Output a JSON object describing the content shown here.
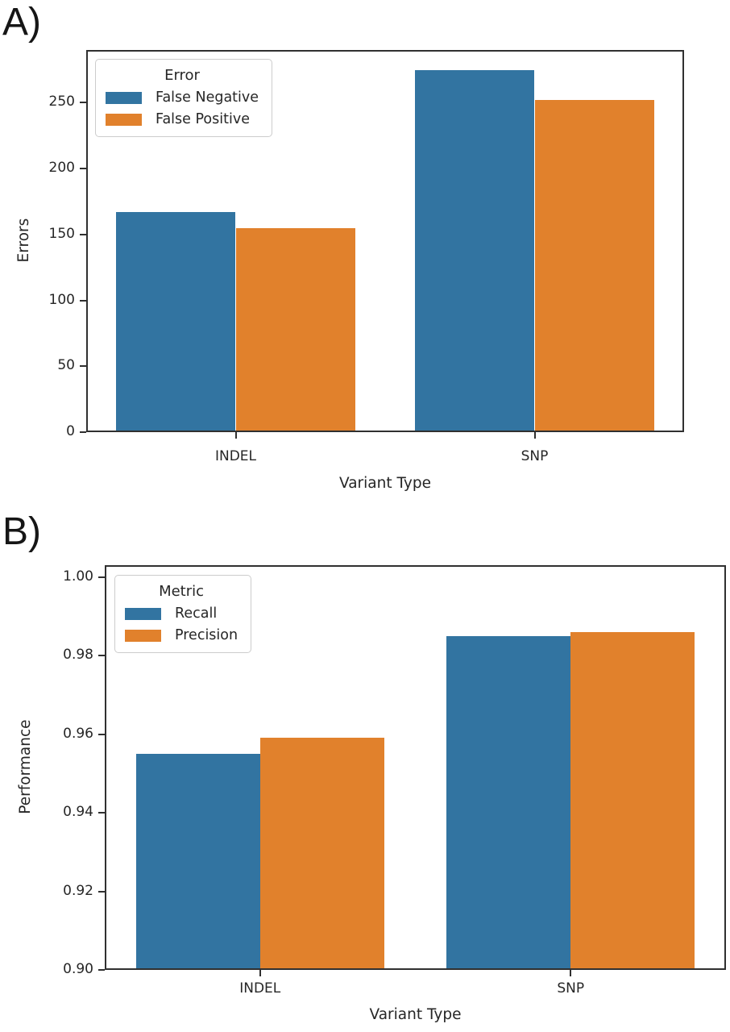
{
  "figure": {
    "background": "#ffffff",
    "text_color": "#262626",
    "panels": [
      {
        "label": "A)"
      },
      {
        "label": "B)"
      }
    ]
  },
  "chart_data": [
    {
      "type": "bar",
      "panel_label": "A)",
      "title": "",
      "xlabel": "Variant Type",
      "ylabel": "Errors",
      "categories": [
        "INDEL",
        "SNP"
      ],
      "series": [
        {
          "name": "False Negative",
          "color": "#3274a1",
          "values": [
            167,
            275
          ]
        },
        {
          "name": "False Positive",
          "color": "#e1812c",
          "values": [
            155,
            252
          ]
        }
      ],
      "legend": {
        "title": "Error",
        "position": "upper-left"
      },
      "ylim": [
        0,
        290
      ],
      "yticks": [
        0,
        50,
        100,
        150,
        200,
        250
      ],
      "ytick_labels": [
        "0",
        "50",
        "100",
        "150",
        "200",
        "250"
      ],
      "grid": false
    },
    {
      "type": "bar",
      "panel_label": "B)",
      "title": "",
      "xlabel": "Variant Type",
      "ylabel": "Performance",
      "categories": [
        "INDEL",
        "SNP"
      ],
      "series": [
        {
          "name": "Recall",
          "color": "#3274a1",
          "values": [
            0.955,
            0.985
          ]
        },
        {
          "name": "Precision",
          "color": "#e1812c",
          "values": [
            0.959,
            0.986
          ]
        }
      ],
      "legend": {
        "title": "Metric",
        "position": "upper-left"
      },
      "ylim": [
        0.9,
        1.003
      ],
      "yticks": [
        0.9,
        0.92,
        0.94,
        0.96,
        0.98,
        1.0
      ],
      "ytick_labels": [
        "0.90",
        "0.92",
        "0.94",
        "0.96",
        "0.98",
        "1.00"
      ],
      "grid": false
    }
  ]
}
